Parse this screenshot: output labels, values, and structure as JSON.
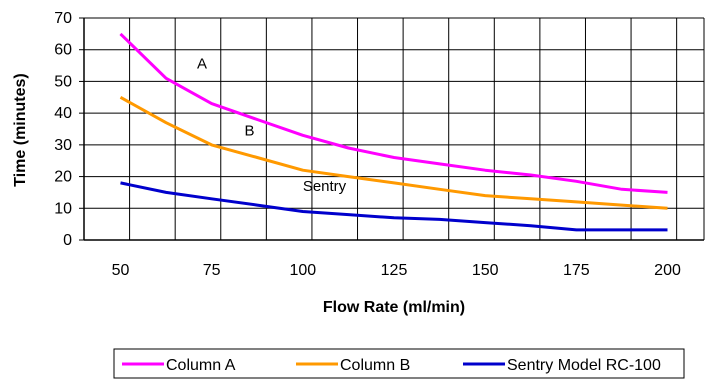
{
  "chart_data": {
    "type": "line",
    "title": "",
    "xlabel": "Flow Rate (ml/min)",
    "ylabel": "Time (minutes)",
    "xlim": [
      40,
      210
    ],
    "ylim": [
      0,
      70
    ],
    "x_ticks": [
      50,
      75,
      100,
      125,
      150,
      175,
      200
    ],
    "y_ticks": [
      0,
      10,
      20,
      30,
      40,
      50,
      60,
      70
    ],
    "grid": true,
    "legend_position": "bottom",
    "series": [
      {
        "name": "Column A",
        "color": "#FF00FF",
        "points": [
          [
            50,
            65
          ],
          [
            62.5,
            51
          ],
          [
            75,
            43
          ],
          [
            87.5,
            38
          ],
          [
            100,
            33
          ],
          [
            112.5,
            29
          ],
          [
            125,
            26
          ],
          [
            137.5,
            24
          ],
          [
            150,
            22
          ],
          [
            162.5,
            20.5
          ],
          [
            175,
            18.5
          ],
          [
            187.5,
            16
          ],
          [
            200,
            15
          ]
        ]
      },
      {
        "name": "Column B",
        "color": "#FF9900",
        "points": [
          [
            50,
            45
          ],
          [
            62.5,
            37
          ],
          [
            75,
            30
          ],
          [
            87.5,
            26
          ],
          [
            100,
            22
          ],
          [
            112.5,
            20
          ],
          [
            125,
            18
          ],
          [
            137.5,
            16
          ],
          [
            150,
            14
          ],
          [
            162.5,
            13
          ],
          [
            175,
            12
          ],
          [
            187.5,
            11
          ],
          [
            200,
            10
          ]
        ]
      },
      {
        "name": "Sentry Model RC-100",
        "color": "#0000CC",
        "points": [
          [
            50,
            18
          ],
          [
            62.5,
            15
          ],
          [
            75,
            13
          ],
          [
            87.5,
            11
          ],
          [
            100,
            9
          ],
          [
            112.5,
            8
          ],
          [
            125,
            7
          ],
          [
            137.5,
            6.5
          ],
          [
            150,
            5.5
          ],
          [
            162.5,
            4.5
          ],
          [
            175,
            3.2
          ],
          [
            187.5,
            3.2
          ],
          [
            200,
            3.2
          ]
        ]
      }
    ],
    "annotations": [
      {
        "text": "A",
        "x": 71,
        "y": 54
      },
      {
        "text": "B",
        "x": 84,
        "y": 33
      },
      {
        "text": "Sentry",
        "x": 100,
        "y": 15.5
      }
    ]
  }
}
